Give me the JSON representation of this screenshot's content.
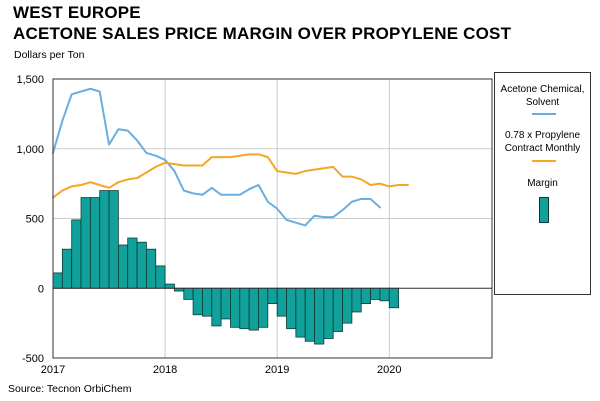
{
  "chart_data": {
    "type": "bar+line",
    "title_line1": "WEST EUROPE",
    "title_line2": "ACETONE SALES PRICE MARGIN OVER PROPYLENE COST",
    "ylabel": "Dollars per Ton",
    "source": "Source: Tecnon OrbiChem",
    "ylim": [
      -500,
      1500
    ],
    "y_ticks": [
      {
        "v": 1500,
        "label": "1,500"
      },
      {
        "v": 1000,
        "label": "1,000"
      },
      {
        "v": 500,
        "label": "500"
      },
      {
        "v": 0,
        "label": "0"
      },
      {
        "v": -500,
        "label": "-500"
      }
    ],
    "x_ticks": [
      {
        "label": "2017",
        "t": 0
      },
      {
        "label": "2018",
        "t": 12
      },
      {
        "label": "2019",
        "t": 24
      },
      {
        "label": "2020",
        "t": 36
      }
    ],
    "x_range_months": [
      0,
      47
    ],
    "series": [
      {
        "name": "Acetone Chemical, Solvent",
        "type": "line",
        "color": "#6aaee0",
        "values": [
          970,
          1200,
          1390,
          1410,
          1430,
          1410,
          1030,
          1140,
          1130,
          1060,
          970,
          950,
          920,
          840,
          700,
          680,
          670,
          720,
          670,
          670,
          670,
          710,
          740,
          620,
          570,
          490,
          470,
          450,
          520,
          510,
          510,
          560,
          620,
          640,
          640,
          580
        ]
      },
      {
        "name": "0.78 x Propylene Contract Monthly",
        "type": "line",
        "color": "#f5a623",
        "values": [
          650,
          700,
          730,
          740,
          760,
          740,
          720,
          760,
          780,
          790,
          830,
          870,
          900,
          890,
          880,
          880,
          880,
          940,
          940,
          940,
          950,
          960,
          960,
          940,
          840,
          830,
          820,
          840,
          850,
          860,
          870,
          800,
          800,
          780,
          740,
          750,
          730,
          740,
          740
        ]
      },
      {
        "name": "Margin",
        "type": "bar",
        "color": "#12a19a",
        "values": [
          110,
          280,
          490,
          650,
          650,
          700,
          700,
          310,
          360,
          330,
          280,
          160,
          30,
          -20,
          -80,
          -190,
          -200,
          -270,
          -220,
          -280,
          -290,
          -300,
          -280,
          -110,
          -200,
          -290,
          -350,
          -380,
          -400,
          -360,
          -310,
          -250,
          -170,
          -110,
          -80,
          -90,
          -140
        ]
      }
    ],
    "legend": [
      {
        "label": "Acetone Chemical, Solvent",
        "swatch": "line"
      },
      {
        "label": "0.78 x Propylene Contract Monthly",
        "swatch": "line"
      },
      {
        "label": "Margin",
        "swatch": "bar"
      }
    ]
  }
}
